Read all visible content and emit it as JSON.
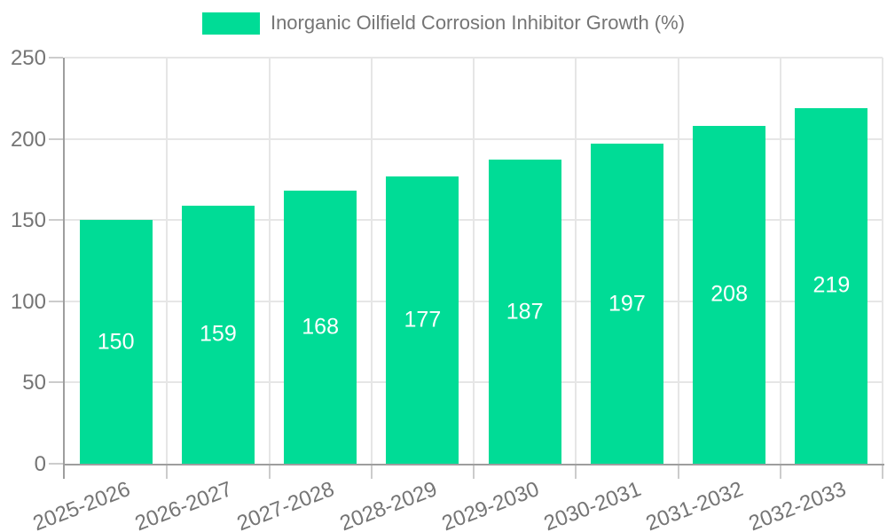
{
  "legend": {
    "label": "Inorganic Oilfield Corrosion Inhibitor Growth (%)"
  },
  "chart_data": {
    "type": "bar",
    "title": "Inorganic Oilfield Corrosion Inhibitor Growth (%)",
    "categories": [
      "2025-2026",
      "2026-2027",
      "2027-2028",
      "2028-2029",
      "2029-2030",
      "2030-2031",
      "2031-2032",
      "2032-2033"
    ],
    "series": [
      {
        "name": "Inorganic Oilfield Corrosion Inhibitor Growth (%)",
        "color": "#00dc96",
        "values": [
          150,
          159,
          168,
          177,
          187,
          197,
          208,
          219
        ]
      }
    ],
    "bar_value_labels": [
      "150",
      "159",
      "168",
      "177",
      "187",
      "197",
      "208",
      "219"
    ],
    "xlabel": "",
    "ylabel": "",
    "ylim": [
      0,
      250
    ],
    "y_ticks": [
      "0",
      "50",
      "100",
      "150",
      "200",
      "250"
    ],
    "grid": true,
    "legend_position": "top-center",
    "colors": {
      "bar": "#00dc96",
      "bar_label": "#ffffff",
      "axis_text": "#757575",
      "axis_line": "#9e9e9e",
      "gridline": "#e6e6e6",
      "tick": "#cccccc",
      "background": "#ffffff"
    }
  }
}
